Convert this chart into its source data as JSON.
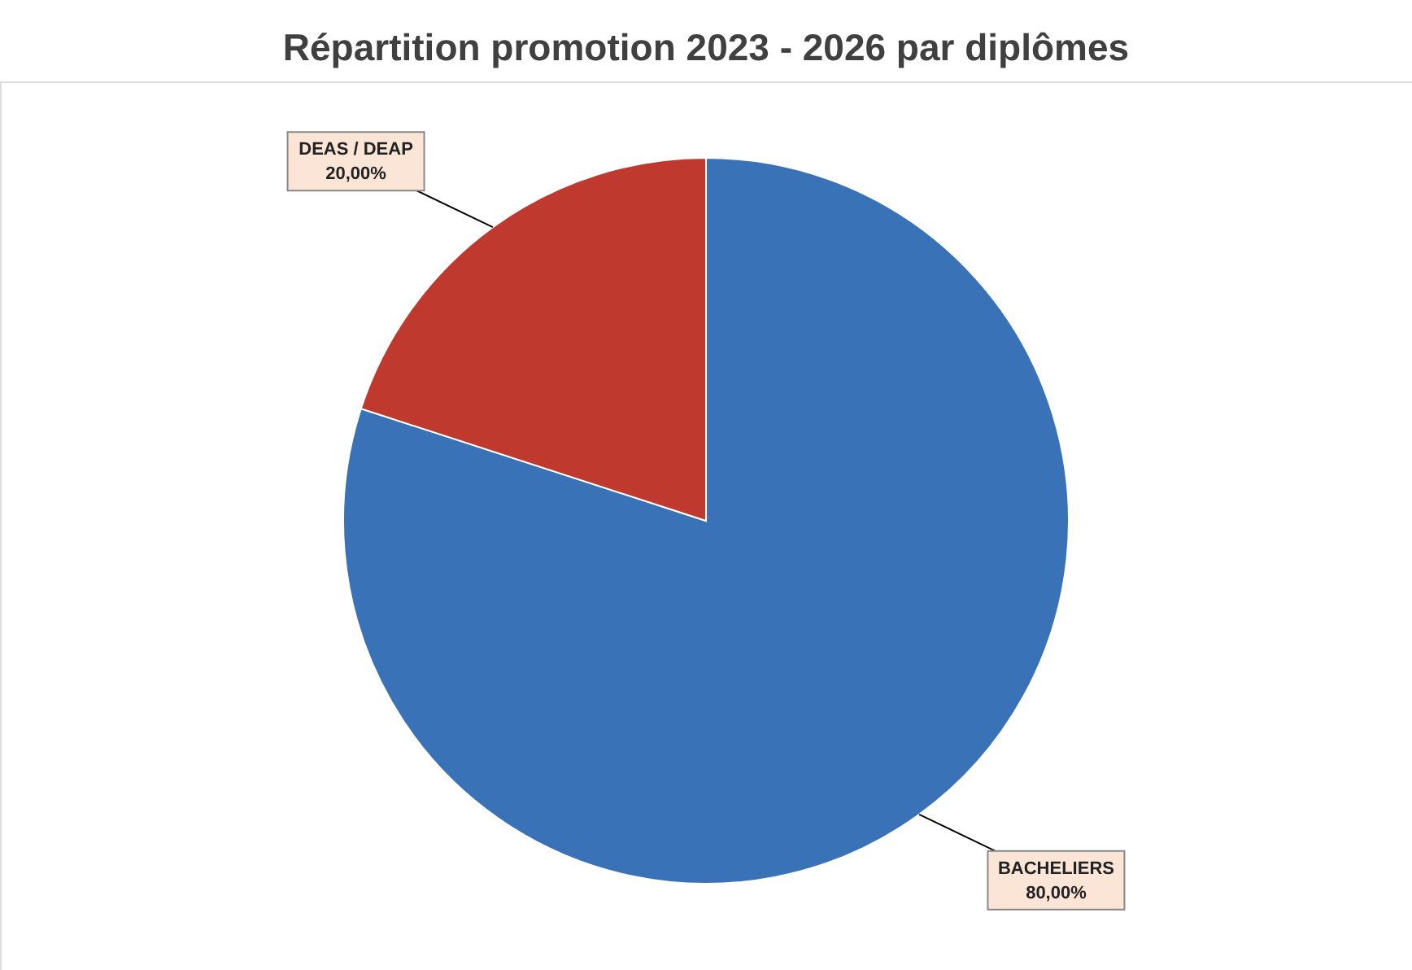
{
  "chart_data": {
    "type": "pie",
    "title": "Répartition promotion 2023 - 2026 par diplômes",
    "categories": [
      "BACHELIERS",
      "DEAS / DEAP"
    ],
    "values": [
      80,
      20
    ],
    "colors": [
      "#3a72b8",
      "#c0392f"
    ],
    "value_labels": [
      "80,00%",
      "20,00%"
    ]
  }
}
